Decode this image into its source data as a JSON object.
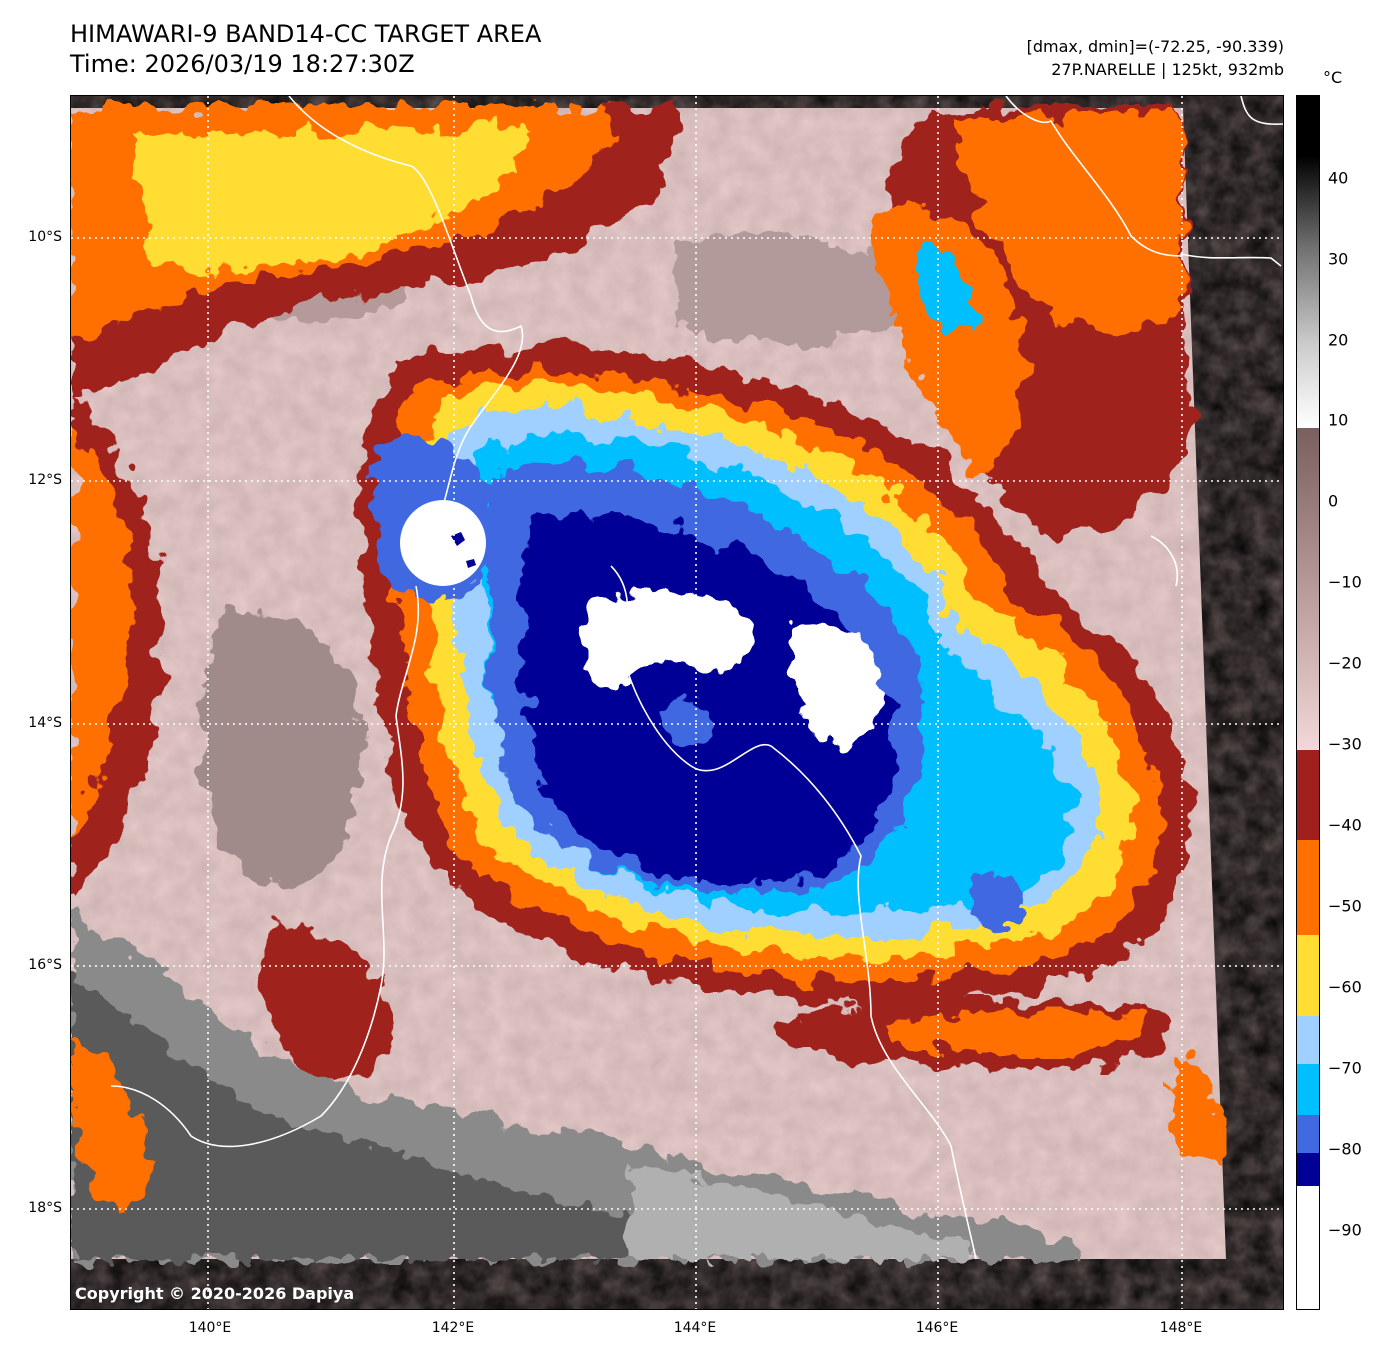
{
  "header": {
    "title_line1": "HIMAWARI-9 BAND14-CC TARGET AREA",
    "title_line2": "Time: 2026/03/19 18:27:30Z",
    "meta_line1": "[dmax, dmin]=(-72.25, -90.339)",
    "meta_line2": "27P.NARELLE | 125kt, 932mb"
  },
  "map": {
    "lon_ticks": [
      "140°E",
      "142°E",
      "144°E",
      "146°E",
      "148°E"
    ],
    "lat_ticks": [
      "10°S",
      "12°S",
      "14°S",
      "16°S",
      "18°S"
    ],
    "copyright": "Copyright © 2020-2026 Dapiya"
  },
  "colorbar": {
    "unit": "°C",
    "ticks": [
      "40",
      "30",
      "20",
      "10",
      "0",
      "−10",
      "−20",
      "−30",
      "−40",
      "−50",
      "−60",
      "−70",
      "−80",
      "−90"
    ],
    "colors": {
      "white_cold": "#ffffff",
      "navy": "#000096",
      "royal_blue": "#4169e1",
      "sky_blue": "#00bfff",
      "light_blue": "#a0d0ff",
      "yellow": "#ffdd33",
      "orange": "#ff7000",
      "dark_red": "#a0201e",
      "pink": "#f2d8d8",
      "mauve": "#7a5f5f",
      "gray": "#808080",
      "black": "#000000"
    }
  }
}
